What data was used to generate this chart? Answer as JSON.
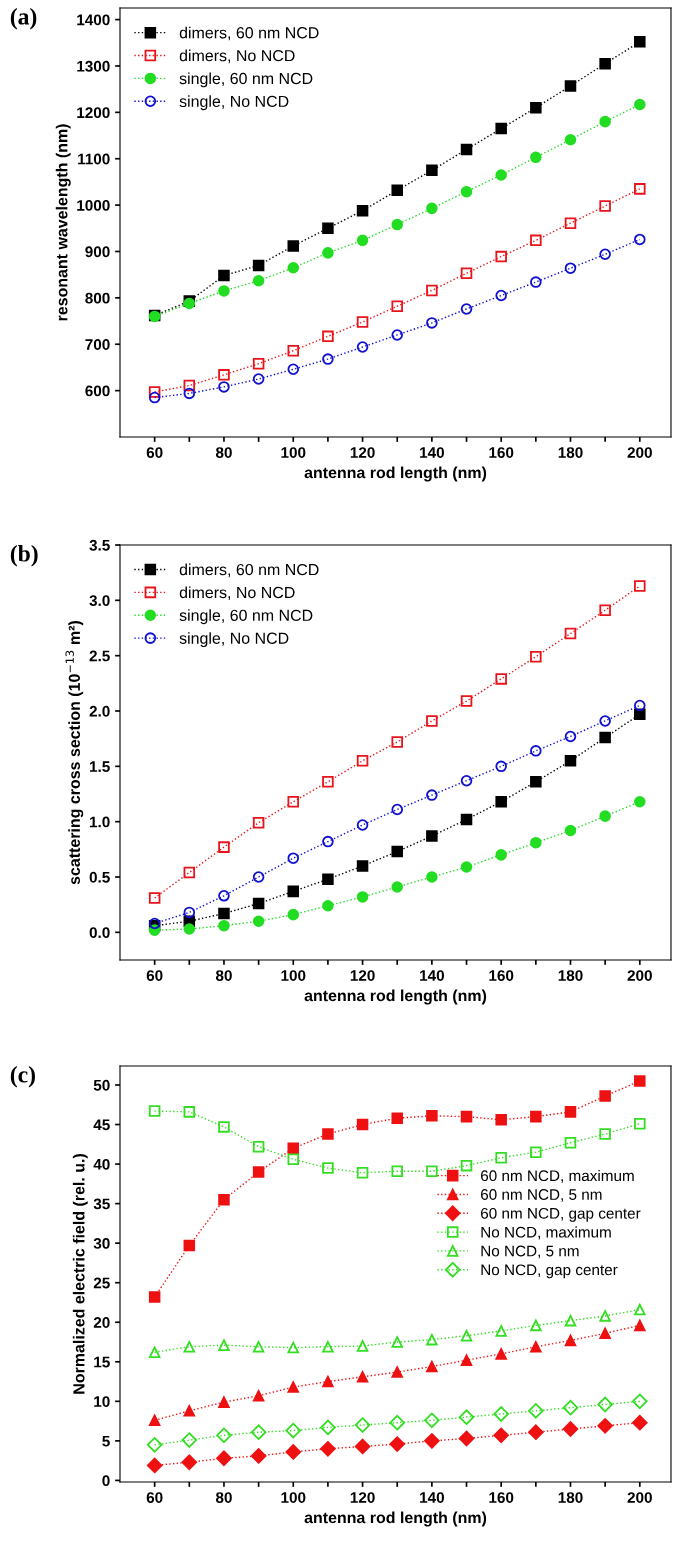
{
  "chart_data": [
    {
      "type": "line",
      "title": "(a)",
      "xlabel": "antenna rod length (nm)",
      "ylabel": "resonant wavelength (nm)",
      "x": [
        60,
        70,
        80,
        90,
        100,
        110,
        120,
        130,
        140,
        150,
        160,
        170,
        180,
        190,
        200
      ],
      "xlim": [
        50,
        209
      ],
      "xticks": [
        60,
        {
          "value": 70,
          "label": null
        },
        80,
        {
          "value": 90,
          "label": null
        },
        100,
        {
          "value": 110,
          "label": null
        },
        120,
        {
          "value": 130,
          "label": null
        },
        140,
        {
          "value": 150,
          "label": null
        },
        160,
        {
          "value": 170,
          "label": null
        },
        180,
        {
          "value": 190,
          "label": null
        },
        200
      ],
      "ylim": [
        500,
        1425
      ],
      "yticks": [
        600,
        700,
        800,
        900,
        1000,
        1100,
        1200,
        1300,
        1400
      ],
      "legend": "top left",
      "line_style": "dotted",
      "grid": false,
      "series": [
        {
          "name": "dimers, 60 nm NCD",
          "color": "#000000",
          "marker": "square",
          "values": [
            762,
            793,
            848,
            870,
            912,
            950,
            988,
            1032,
            1075,
            1120,
            1165,
            1210,
            1257,
            1305,
            1352
          ]
        },
        {
          "name": "dimers, No NCD",
          "color": "#e8141b",
          "marker": "square-open",
          "values": [
            597,
            611,
            634,
            658,
            686,
            717,
            748,
            782,
            816,
            853,
            889,
            924,
            961,
            998,
            1035
          ]
        },
        {
          "name": "single, 60 nm NCD",
          "color": "#22dd22",
          "marker": "circle",
          "values": [
            760,
            788,
            815,
            837,
            865,
            897,
            924,
            958,
            993,
            1029,
            1065,
            1103,
            1141,
            1180,
            1217
          ]
        },
        {
          "name": "single, No NCD",
          "color": "#1010d0",
          "marker": "circle-open",
          "values": [
            585,
            594,
            608,
            625,
            646,
            668,
            694,
            720,
            746,
            776,
            805,
            834,
            864,
            894,
            926
          ]
        }
      ]
    },
    {
      "type": "line",
      "title": "(b)",
      "xlabel": "antenna rod length (nm)",
      "ylabel": "scattering cross section (10$^{−13}$ m²)",
      "x": [
        60,
        70,
        80,
        90,
        100,
        110,
        120,
        130,
        140,
        150,
        160,
        170,
        180,
        190,
        200
      ],
      "xlim": [
        50,
        209
      ],
      "xticks": [
        60,
        {
          "value": 70,
          "label": null
        },
        80,
        {
          "value": 90,
          "label": null
        },
        100,
        {
          "value": 110,
          "label": null
        },
        120,
        {
          "value": 130,
          "label": null
        },
        140,
        {
          "value": 150,
          "label": null
        },
        160,
        {
          "value": 170,
          "label": null
        },
        180,
        {
          "value": 190,
          "label": null
        },
        200
      ],
      "ylim": [
        -0.25,
        3.5
      ],
      "yticks": [
        {
          "value": 0,
          "label": "0.0"
        },
        0.5,
        {
          "value": 1,
          "label": "1.0"
        },
        1.5,
        {
          "value": 2,
          "label": "2.0"
        },
        2.5,
        {
          "value": 3,
          "label": "3.0"
        },
        3.5
      ],
      "legend": "top left",
      "line_style": "dotted",
      "grid": false,
      "series": [
        {
          "name": "dimers, 60 nm NCD",
          "color": "#000000",
          "marker": "square",
          "values": [
            0.06,
            0.1,
            0.17,
            0.26,
            0.37,
            0.48,
            0.6,
            0.73,
            0.87,
            1.02,
            1.18,
            1.36,
            1.55,
            1.76,
            1.97
          ]
        },
        {
          "name": "dimers, No NCD",
          "color": "#e8141b",
          "marker": "square-open",
          "values": [
            0.31,
            0.54,
            0.77,
            0.99,
            1.18,
            1.36,
            1.55,
            1.72,
            1.91,
            2.09,
            2.29,
            2.49,
            2.7,
            2.91,
            3.13
          ]
        },
        {
          "name": "single, 60 nm NCD",
          "color": "#22dd22",
          "marker": "circle",
          "values": [
            0.02,
            0.03,
            0.06,
            0.1,
            0.16,
            0.24,
            0.32,
            0.41,
            0.5,
            0.59,
            0.7,
            0.81,
            0.92,
            1.05,
            1.18
          ]
        },
        {
          "name": "single, No NCD",
          "color": "#1010d0",
          "marker": "circle-open",
          "values": [
            0.08,
            0.18,
            0.33,
            0.5,
            0.67,
            0.82,
            0.97,
            1.11,
            1.24,
            1.37,
            1.5,
            1.64,
            1.77,
            1.91,
            2.05
          ]
        }
      ]
    },
    {
      "type": "line",
      "title": "(c)",
      "xlabel": "antenna rod length (nm)",
      "ylabel": "Normalized electric field (rel. u.)",
      "x": [
        60,
        70,
        80,
        90,
        100,
        110,
        120,
        130,
        140,
        150,
        160,
        170,
        180,
        190,
        200
      ],
      "xlim": [
        50,
        209
      ],
      "xticks": [
        60,
        {
          "value": 70,
          "label": null
        },
        80,
        {
          "value": 90,
          "label": null
        },
        100,
        {
          "value": 110,
          "label": null
        },
        120,
        {
          "value": 130,
          "label": null
        },
        140,
        {
          "value": 150,
          "label": null
        },
        160,
        {
          "value": 170,
          "label": null
        },
        180,
        {
          "value": 190,
          "label": null
        },
        200
      ],
      "ylim": [
        -0.2,
        52.4
      ],
      "yticks": [
        0,
        5,
        10,
        15,
        20,
        25,
        30,
        35,
        40,
        45,
        50
      ],
      "legend": "center right",
      "line_style": "dotted",
      "grid": false,
      "series": [
        {
          "name": "60 nm NCD, maximum",
          "color": "#ee1111",
          "marker": "square",
          "values": [
            23.2,
            29.7,
            35.5,
            39,
            42,
            43.8,
            45,
            45.8,
            46.1,
            46,
            45.6,
            46,
            46.6,
            48.6,
            50.5
          ]
        },
        {
          "name": "60 nm NCD, 5 nm",
          "color": "#ee1111",
          "marker": "triangle",
          "values": [
            7.6,
            8.8,
            9.9,
            10.7,
            11.8,
            12.5,
            13.1,
            13.7,
            14.4,
            15.2,
            16,
            16.9,
            17.7,
            18.6,
            19.6
          ]
        },
        {
          "name": "60 nm NCD, gap center",
          "color": "#ee1111",
          "marker": "diamond",
          "values": [
            1.9,
            2.3,
            2.8,
            3.1,
            3.6,
            4,
            4.3,
            4.6,
            5,
            5.3,
            5.7,
            6.1,
            6.5,
            6.9,
            7.3
          ]
        },
        {
          "name": "No NCD, maximum",
          "color": "#33dd22",
          "marker": "square-open",
          "values": [
            46.7,
            46.6,
            44.7,
            42.2,
            40.6,
            39.5,
            38.9,
            39.1,
            39.1,
            39.8,
            40.8,
            41.5,
            42.7,
            43.8,
            45.1
          ]
        },
        {
          "name": "No NCD, 5 nm",
          "color": "#33dd22",
          "marker": "triangle-open",
          "values": [
            16.2,
            16.9,
            17.1,
            16.9,
            16.8,
            16.9,
            17,
            17.5,
            17.8,
            18.3,
            18.9,
            19.6,
            20.2,
            20.8,
            21.6
          ]
        },
        {
          "name": "No NCD, gap center",
          "color": "#33dd22",
          "marker": "diamond-open",
          "values": [
            4.5,
            5.1,
            5.7,
            6.1,
            6.3,
            6.7,
            7,
            7.3,
            7.6,
            8,
            8.4,
            8.8,
            9.2,
            9.6,
            10
          ]
        }
      ]
    }
  ]
}
